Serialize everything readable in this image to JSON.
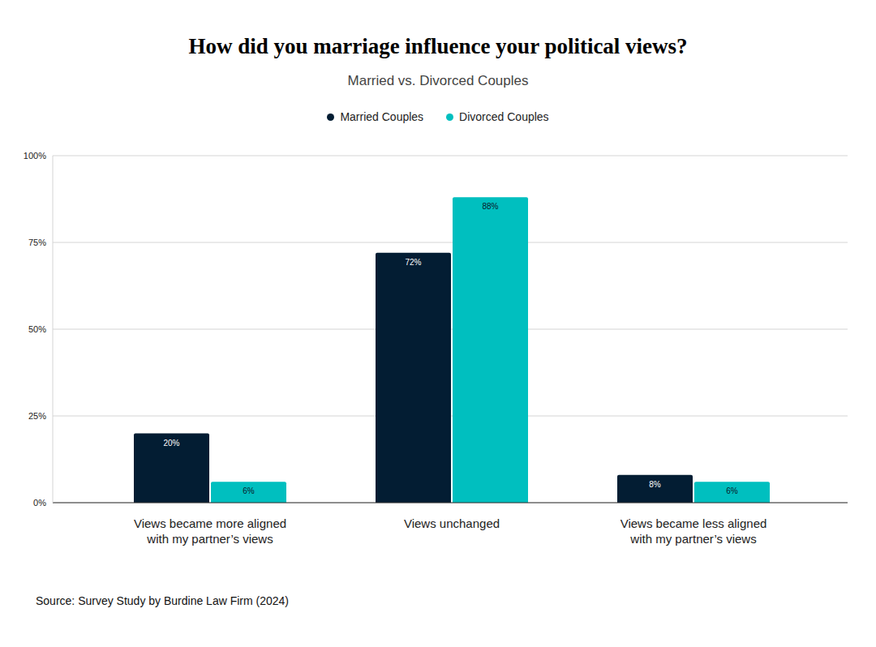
{
  "chart_data": {
    "type": "bar",
    "title": "How did you marriage influence your political views?",
    "subtitle": "Married vs. Divorced Couples",
    "annotations": [
      "Source: Survey Study by Burdine Law Firm (2024)"
    ],
    "categories": [
      "Views became more aligned with my partner’s views",
      "Views unchanged",
      "Views became less aligned with my partner’s views"
    ],
    "series": [
      {
        "name": "Married Couples",
        "color": "#031d33",
        "values": [
          20,
          72,
          8
        ],
        "value_labels": [
          "20%",
          "72%",
          "8%"
        ]
      },
      {
        "name": "Divorced Couples",
        "color": "#00bfbf",
        "values": [
          6,
          88,
          6
        ],
        "value_labels": [
          "6%",
          "88%",
          "6%"
        ]
      }
    ],
    "ylim": [
      0,
      100
    ],
    "yticks": [
      {
        "value": 0,
        "label": "0%"
      },
      {
        "value": 25,
        "label": "25%"
      },
      {
        "value": 50,
        "label": "50%"
      },
      {
        "value": 75,
        "label": "75%"
      },
      {
        "value": 100,
        "label": "100%"
      }
    ],
    "grid": true,
    "legend": "top",
    "data_labels": true
  }
}
